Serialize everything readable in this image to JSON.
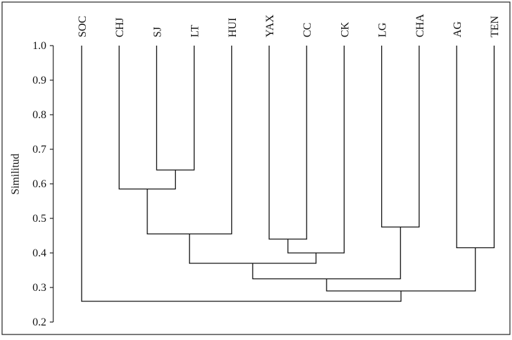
{
  "chart_data": {
    "type": "dendrogram",
    "title": "",
    "xlabel": "",
    "ylabel": "Similitud",
    "ylim": [
      0.2,
      1.0
    ],
    "yticks": [
      "1.0",
      "0.9",
      "0.8",
      "0.7",
      "0.6",
      "0.5",
      "0.4",
      "0.3",
      "0.2"
    ],
    "ytick_values": [
      1.0,
      0.9,
      0.8,
      0.7,
      0.6,
      0.5,
      0.4,
      0.3,
      0.2
    ],
    "leaves": [
      "SOC",
      "CHJ",
      "SJ",
      "LT",
      "HUI",
      "YAX",
      "CC",
      "CK",
      "LG",
      "CHA",
      "AG",
      "TEN"
    ],
    "merges": [
      {
        "id": "m1",
        "left": "SJ",
        "right": "LT",
        "similarity": 0.64
      },
      {
        "id": "m2",
        "left": "CHJ",
        "right": "m1",
        "similarity": 0.585
      },
      {
        "id": "m3",
        "left": "m2",
        "right": "HUI",
        "similarity": 0.455
      },
      {
        "id": "m4",
        "left": "YAX",
        "right": "CC",
        "similarity": 0.44
      },
      {
        "id": "m5",
        "left": "m4",
        "right": "CK",
        "similarity": 0.4
      },
      {
        "id": "m6",
        "left": "LG",
        "right": "CHA",
        "similarity": 0.475
      },
      {
        "id": "m7",
        "left": "AG",
        "right": "TEN",
        "similarity": 0.415
      },
      {
        "id": "m8",
        "left": "m3",
        "right": "m5",
        "similarity": 0.37
      },
      {
        "id": "m9",
        "left": "m8",
        "right": "m6",
        "similarity": 0.325
      },
      {
        "id": "m10",
        "left": "m9",
        "right": "m7",
        "similarity": 0.29
      },
      {
        "id": "m11",
        "left": "SOC",
        "right": "m10",
        "similarity": 0.26
      }
    ],
    "grid": false,
    "legend": "none"
  }
}
